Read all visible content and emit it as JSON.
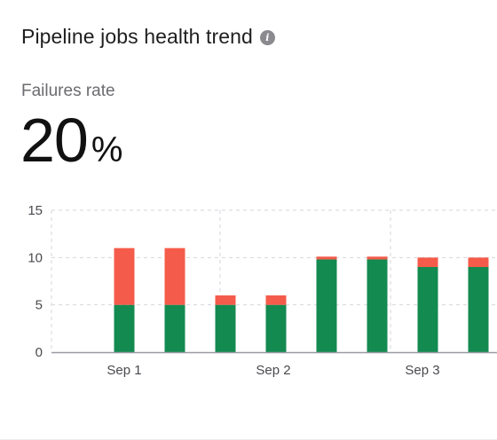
{
  "header": {
    "title": "Pipeline jobs health trend",
    "info_icon": "info-icon"
  },
  "metric": {
    "label": "Failures rate",
    "value": "20",
    "unit": "%"
  },
  "colors": {
    "success": "#138a50",
    "failure": "#f55b4a",
    "grid": "#d6d6dc",
    "axis": "#9a9aa5"
  },
  "chart_data": {
    "type": "bar",
    "stacked": true,
    "x_tick_labels": [
      "Sep 1",
      "Sep 2",
      "Sep 3"
    ],
    "categories": [
      "",
      "",
      "",
      "",
      "",
      "",
      "",
      ""
    ],
    "series": [
      {
        "values": [
          5,
          5,
          5,
          5,
          9.8,
          9.8,
          9,
          9
        ]
      },
      {
        "values": [
          6,
          6,
          1,
          1,
          0.3,
          0.3,
          1,
          1
        ]
      }
    ],
    "y_ticks": [
      0,
      5,
      10,
      15
    ],
    "ylim": [
      0,
      15
    ],
    "grid": true,
    "legend": "none"
  }
}
